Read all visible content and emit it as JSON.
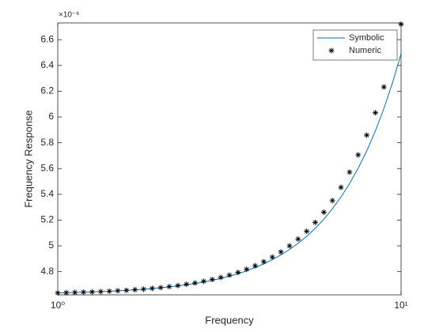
{
  "chart_data": {
    "type": "line",
    "x_label": "Frequency",
    "y_label": "Frequency Response",
    "y_exponent": "×10⁻⁶",
    "xscale": "log",
    "xlim": [
      1,
      10
    ],
    "xticks": [
      {
        "value": 1,
        "label": "10⁰"
      },
      {
        "value": 10,
        "label": "10¹"
      }
    ],
    "ylim": [
      4.62,
      6.73
    ],
    "yticks": [
      4.8,
      5,
      5.2,
      5.4,
      5.6,
      5.8,
      6,
      6.2,
      6.4,
      6.6
    ],
    "legend": "top-right",
    "x": [
      1,
      1.059,
      1.122,
      1.189,
      1.259,
      1.334,
      1.413,
      1.496,
      1.585,
      1.679,
      1.778,
      1.884,
      1.995,
      2.113,
      2.239,
      2.371,
      2.512,
      2.661,
      2.818,
      2.985,
      3.162,
      3.35,
      3.548,
      3.758,
      3.981,
      4.217,
      4.467,
      4.732,
      5.012,
      5.309,
      5.623,
      5.957,
      6.31,
      6.683,
      7.079,
      7.499,
      7.943,
      8.414,
      8.913,
      9.441,
      10
    ],
    "series": [
      {
        "name": "Symbolic",
        "color": "#0072bd",
        "style": "line",
        "values": [
          4.635,
          4.637,
          4.639,
          4.64,
          4.643,
          4.645,
          4.648,
          4.651,
          4.655,
          4.659,
          4.663,
          4.669,
          4.675,
          4.682,
          4.689,
          4.698,
          4.708,
          4.72,
          4.733,
          4.748,
          4.765,
          4.784,
          4.806,
          4.832,
          4.86,
          4.893,
          4.93,
          4.972,
          5.02,
          5.074,
          5.136,
          5.207,
          5.288,
          5.379,
          5.483,
          5.602,
          5.737,
          5.891,
          6.066,
          6.265,
          6.492
        ]
      },
      {
        "name": "Numeric",
        "color": "#000000",
        "style": "marker",
        "values": [
          4.635,
          4.637,
          4.639,
          4.641,
          4.643,
          4.645,
          4.648,
          4.652,
          4.655,
          4.66,
          4.664,
          4.67,
          4.676,
          4.684,
          4.692,
          4.702,
          4.712,
          4.725,
          4.739,
          4.755,
          4.773,
          4.794,
          4.818,
          4.846,
          4.877,
          4.913,
          4.953,
          5.0,
          5.053,
          5.113,
          5.182,
          5.261,
          5.351,
          5.454,
          5.572,
          5.706,
          5.859,
          6.033,
          6.233,
          6.46,
          6.72
        ]
      }
    ]
  }
}
